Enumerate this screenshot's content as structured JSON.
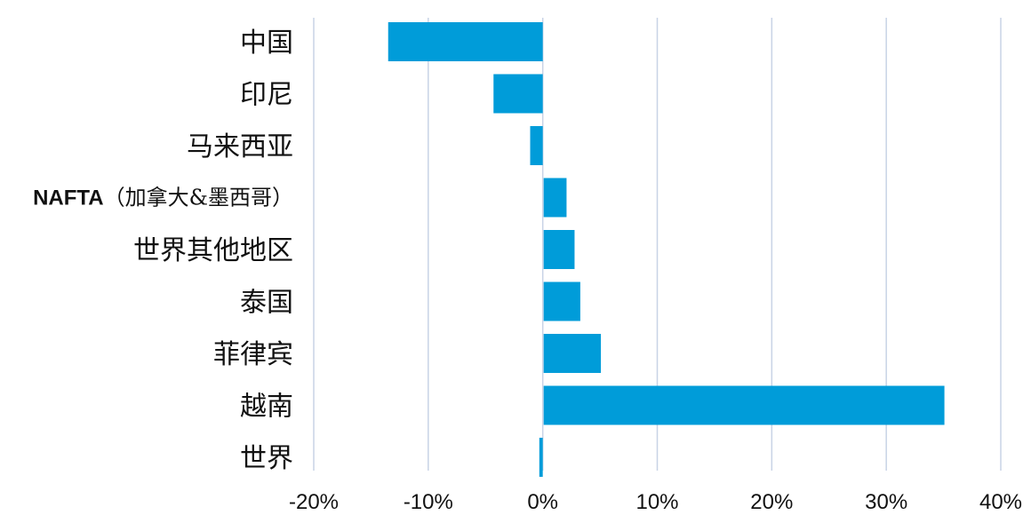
{
  "chart_data": {
    "type": "bar",
    "orientation": "horizontal",
    "title": "",
    "xlabel": "",
    "ylabel": "",
    "categories": [
      "中国",
      "印尼",
      "马来西亚",
      "NAFTA（加拿大&墨西哥）",
      "世界其他地区",
      "泰国",
      "菲律宾",
      "越南",
      "世界"
    ],
    "values": [
      -13.5,
      -4.3,
      -1.1,
      2.0,
      2.7,
      3.2,
      5.0,
      35.0,
      -0.3
    ],
    "xlim": [
      -20,
      40
    ],
    "xticks": [
      -20,
      -10,
      0,
      10,
      20,
      30,
      40
    ],
    "tick_labels": [
      "-20%",
      "-10%",
      "0%",
      "10%",
      "20%",
      "30%",
      "40%"
    ],
    "grid": "vertical",
    "bar_color": "#009cd9",
    "grid_color": "#c8d3e6"
  }
}
